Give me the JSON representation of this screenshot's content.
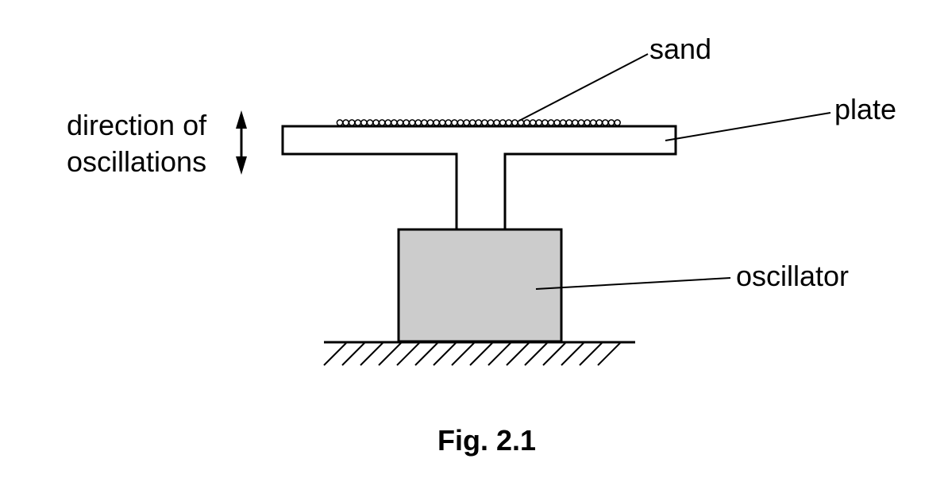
{
  "labels": {
    "sand": "sand",
    "plate": "plate",
    "oscillator": "oscillator",
    "direction_line1": "direction of",
    "direction_line2": "oscillations"
  },
  "caption": "Fig. 2.1",
  "colors": {
    "line": "#000000",
    "oscillator_fill": "#cccccc",
    "background": "#ffffff"
  }
}
